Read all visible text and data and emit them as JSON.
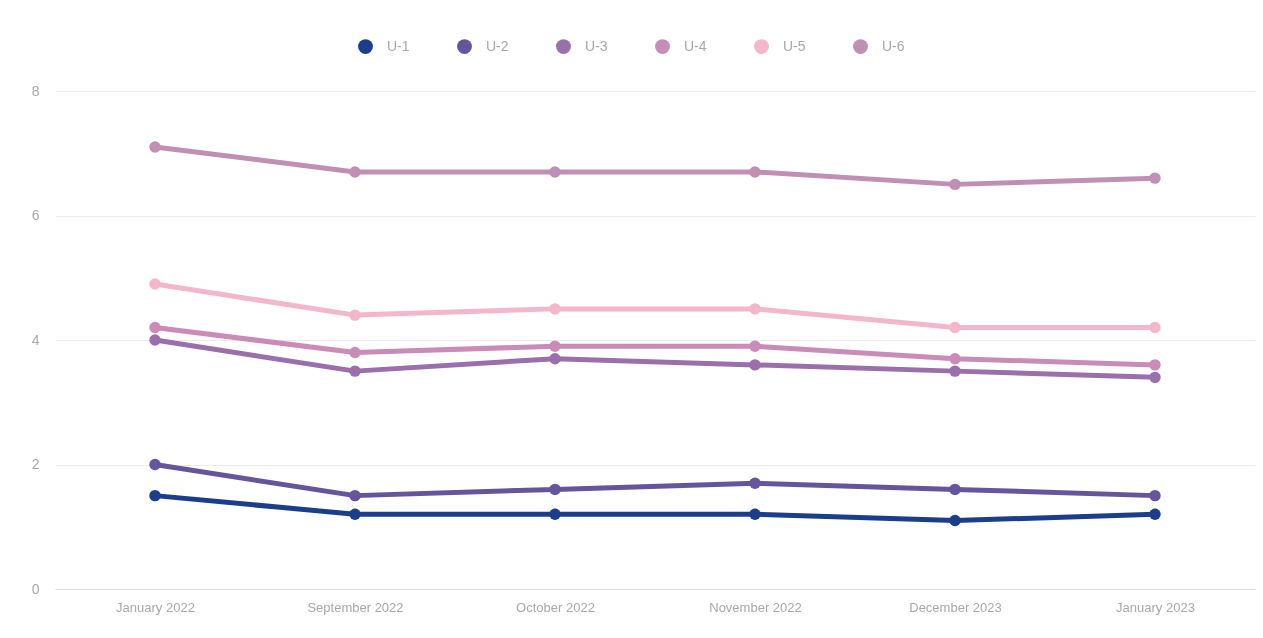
{
  "chart_data": {
    "type": "line",
    "categories": [
      "January 2022",
      "September 2022",
      "October 2022",
      "November 2022",
      "December 2023",
      "January 2023"
    ],
    "series": [
      {
        "name": "U-1",
        "color": "#1a3e8c",
        "values": [
          1.5,
          1.2,
          1.2,
          1.2,
          1.1,
          1.2
        ]
      },
      {
        "name": "U-2",
        "color": "#66549c",
        "values": [
          2.0,
          1.5,
          1.6,
          1.7,
          1.6,
          1.5
        ]
      },
      {
        "name": "U-3",
        "color": "#9b6fac",
        "values": [
          4.0,
          3.5,
          3.7,
          3.6,
          3.5,
          3.4
        ]
      },
      {
        "name": "U-4",
        "color": "#c98cb9",
        "values": [
          4.2,
          3.8,
          3.9,
          3.9,
          3.7,
          3.6
        ]
      },
      {
        "name": "U-5",
        "color": "#f3b6cb",
        "values": [
          4.9,
          4.4,
          4.5,
          4.5,
          4.2,
          4.2
        ]
      },
      {
        "name": "U-6",
        "color": "#c08fb4",
        "values": [
          7.1,
          6.7,
          6.7,
          6.7,
          6.5,
          6.6
        ]
      }
    ],
    "ylim": [
      0,
      8
    ],
    "yticks": [
      0,
      2,
      4,
      6,
      8
    ],
    "grid": "y",
    "legend": "top",
    "marker": "circle",
    "line_style": "solid"
  }
}
